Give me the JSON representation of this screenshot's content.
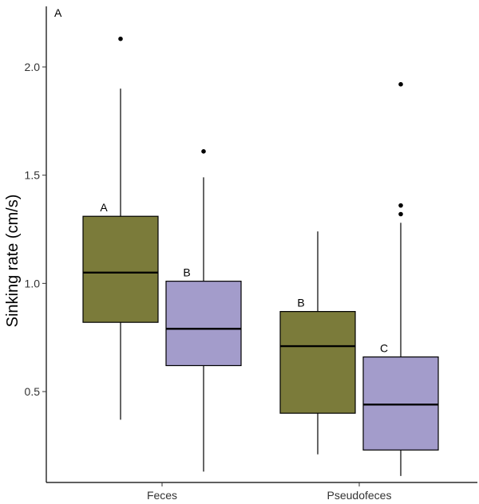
{
  "panel_label": "A",
  "chart_data": {
    "type": "box",
    "title": "",
    "xlabel": "",
    "ylabel": "Sinking rate (cm/s)",
    "ylim": [
      0.08,
      2.28
    ],
    "yticks": [
      0.5,
      1.0,
      1.5,
      2.0
    ],
    "ytick_labels": [
      "0.5",
      "1.0",
      "1.5",
      "2.0"
    ],
    "grid": false,
    "categories": [
      "Feces",
      "Pseudofeces"
    ],
    "series": [
      {
        "color": "#7b7b3a",
        "boxes": [
          {
            "category": "Feces",
            "whisker_low": 0.37,
            "q1": 0.82,
            "median": 1.05,
            "q3": 1.31,
            "whisker_high": 1.9,
            "outliers": [
              2.13
            ],
            "letter": "A"
          },
          {
            "category": "Pseudofeces",
            "whisker_low": 0.21,
            "q1": 0.4,
            "median": 0.71,
            "q3": 0.87,
            "whisker_high": 1.24,
            "outliers": [],
            "letter": "B"
          }
        ]
      },
      {
        "color": "#a39ccb",
        "boxes": [
          {
            "category": "Feces",
            "whisker_low": 0.13,
            "q1": 0.62,
            "median": 0.79,
            "q3": 1.01,
            "whisker_high": 1.49,
            "outliers": [
              1.61
            ],
            "letter": "B"
          },
          {
            "category": "Pseudofeces",
            "whisker_low": 0.11,
            "q1": 0.23,
            "median": 0.44,
            "q3": 0.66,
            "whisker_high": 1.28,
            "outliers": [
              1.32,
              1.36,
              1.92
            ],
            "letter": "C"
          }
        ]
      }
    ]
  }
}
